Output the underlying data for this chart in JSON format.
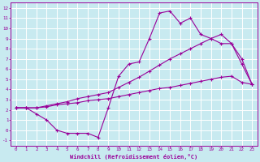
{
  "xlabel": "Windchill (Refroidissement éolien,°C)",
  "bg_color": "#c8eaf0",
  "line_color": "#990099",
  "grid_color": "#ffffff",
  "xlim": [
    -0.5,
    23.5
  ],
  "ylim": [
    -1.5,
    12.5
  ],
  "xticks": [
    0,
    1,
    2,
    3,
    4,
    5,
    6,
    7,
    8,
    9,
    10,
    11,
    12,
    13,
    14,
    15,
    16,
    17,
    18,
    19,
    20,
    21,
    22,
    23
  ],
  "yticks": [
    -1,
    0,
    1,
    2,
    3,
    4,
    5,
    6,
    7,
    8,
    9,
    10,
    11,
    12
  ],
  "line1_x": [
    0,
    1,
    2,
    3,
    4,
    5,
    6,
    7,
    8,
    9,
    10,
    11,
    12,
    13,
    14,
    15,
    16,
    17,
    18,
    19,
    20,
    21,
    22,
    23
  ],
  "line1_y": [
    2.2,
    2.2,
    1.6,
    1.0,
    0.0,
    -0.3,
    -0.3,
    -0.3,
    -0.7,
    2.2,
    5.3,
    6.5,
    6.7,
    9.0,
    11.5,
    11.7,
    10.5,
    11.0,
    9.4,
    9.0,
    8.5,
    8.5,
    6.5,
    4.5
  ],
  "line2_x": [
    0,
    1,
    2,
    3,
    4,
    5,
    6,
    7,
    8,
    9,
    10,
    11,
    12,
    13,
    14,
    15,
    16,
    17,
    18,
    19,
    20,
    21,
    22,
    23
  ],
  "line2_y": [
    2.2,
    2.2,
    2.2,
    2.3,
    2.5,
    2.6,
    2.7,
    2.9,
    3.0,
    3.1,
    3.3,
    3.5,
    3.7,
    3.9,
    4.1,
    4.2,
    4.4,
    4.6,
    4.8,
    5.0,
    5.2,
    5.3,
    4.7,
    4.5
  ],
  "line3_x": [
    0,
    1,
    2,
    3,
    4,
    5,
    6,
    7,
    8,
    9,
    10,
    11,
    12,
    13,
    14,
    15,
    16,
    17,
    18,
    19,
    20,
    21,
    22,
    23
  ],
  "line3_y": [
    2.2,
    2.2,
    2.2,
    2.4,
    2.6,
    2.8,
    3.1,
    3.3,
    3.5,
    3.7,
    4.2,
    4.7,
    5.2,
    5.8,
    6.4,
    7.0,
    7.5,
    8.0,
    8.5,
    9.0,
    9.4,
    8.5,
    7.0,
    4.5
  ]
}
